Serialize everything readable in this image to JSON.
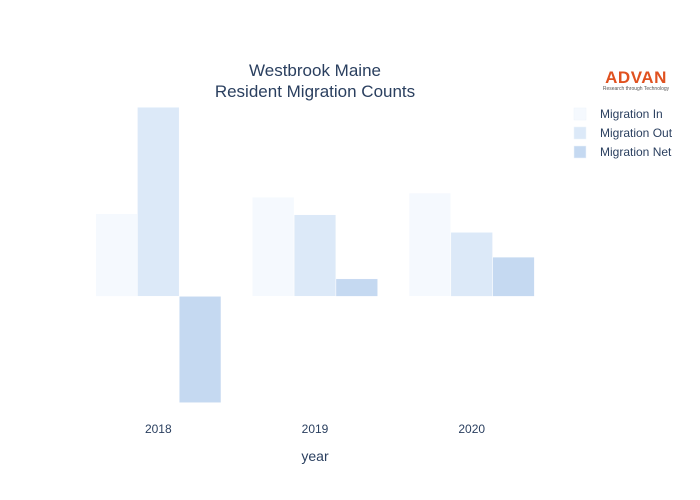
{
  "chart_data": {
    "type": "bar",
    "title_line1": "Westbrook Maine",
    "title_line2": "Resident Migration Counts",
    "xlabel": "year",
    "ylabel": "",
    "categories": [
      "2018",
      "2019",
      "2020"
    ],
    "series": [
      {
        "name": "Migration In",
        "values": [
          80,
          96,
          100
        ],
        "color": "#f5f9fe"
      },
      {
        "name": "Migration Out",
        "values": [
          183,
          79,
          62
        ],
        "color": "#dce9f8"
      },
      {
        "name": "Migration Net",
        "values": [
          -103,
          17,
          38
        ],
        "color": "#c5d9f1"
      }
    ],
    "ylim": [
      -110,
      190
    ],
    "grid": false,
    "legend_position": "top-right"
  },
  "logo": {
    "name": "ADVAN",
    "tagline": "Research through Technology"
  }
}
